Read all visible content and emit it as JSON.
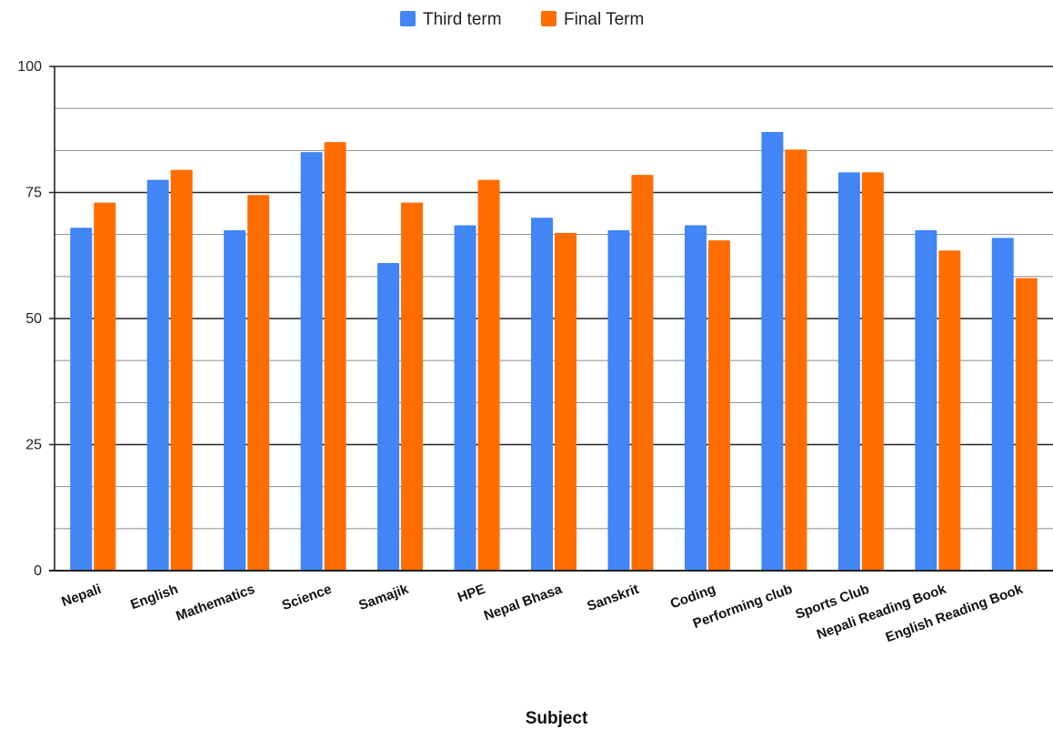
{
  "chart_data": {
    "type": "bar",
    "xlabel": "Subject",
    "ylabel": "",
    "ylim": [
      0,
      100
    ],
    "yticks": [
      0,
      25,
      50,
      75,
      100
    ],
    "minor_gridlines": true,
    "legend_position": "top",
    "categories": [
      "Nepali",
      "English",
      "Mathematics",
      "Science",
      "Samajik",
      "HPE",
      "Nepal Bhasa",
      "Sanskrit",
      "Coding",
      "Performing club",
      "Sports Club",
      "Nepali Reading Book",
      "English Reading Book"
    ],
    "series": [
      {
        "name": "Third term",
        "color": "#4285F4",
        "values": [
          68,
          77.5,
          67.5,
          83,
          61,
          68.5,
          70,
          67.5,
          68.5,
          87,
          79,
          67.5,
          66
        ]
      },
      {
        "name": "Final Term",
        "color": "#FF6D01",
        "values": [
          73,
          79.5,
          74.5,
          85,
          73,
          77.5,
          67,
          78.5,
          65.5,
          83.5,
          79,
          63.5,
          58
        ]
      }
    ]
  }
}
